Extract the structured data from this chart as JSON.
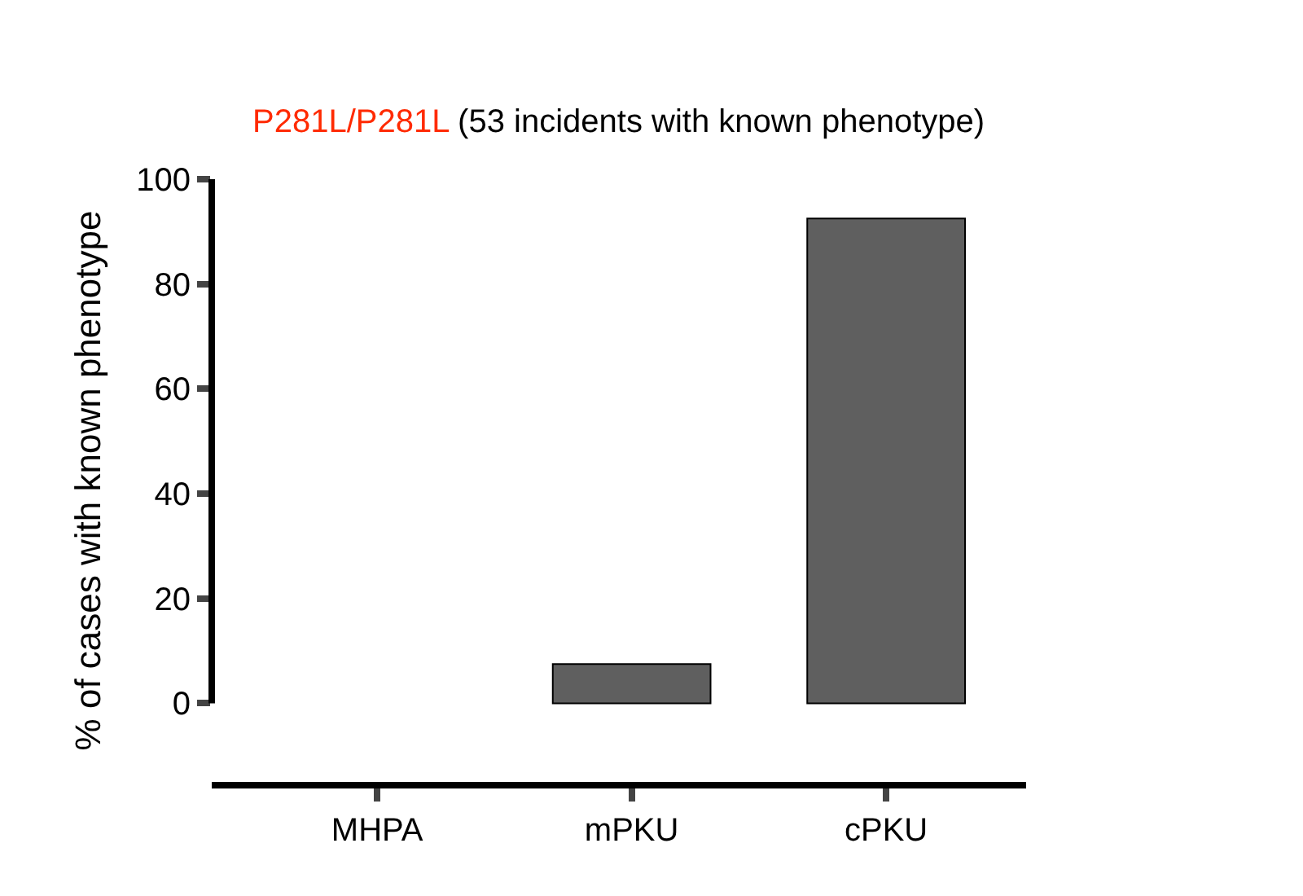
{
  "chart_data": {
    "type": "bar",
    "title": "P281L/P281L",
    "subtitle": "(53 incidents with known phenotype)",
    "ylabel": "% of cases with known phenotype",
    "categories": [
      "MHPA",
      "mPKU",
      "cPKU"
    ],
    "values": [
      0,
      7.5,
      92.5
    ],
    "color": "#5f5f5f",
    "ylim": [
      -15,
      100
    ],
    "yticks": [
      0,
      20,
      40,
      60,
      80,
      100
    ]
  }
}
